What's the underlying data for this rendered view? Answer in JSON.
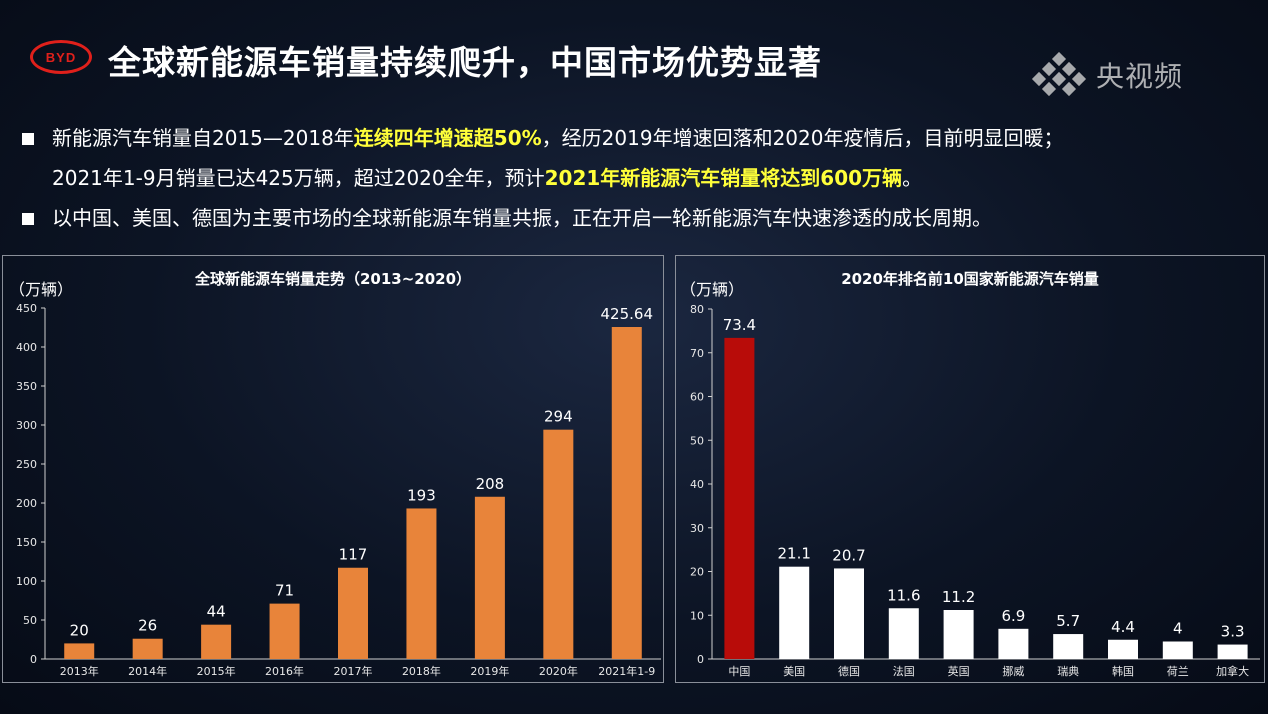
{
  "header": {
    "logo_text": "BYD",
    "title": "全球新能源车销量持续爬升，中国市场优势显著",
    "watermark": "央视频"
  },
  "bullets": [
    {
      "parts": [
        {
          "text": "新能源汽车销量自2015—2018年",
          "hl": false
        },
        {
          "text": "连续四年增速超50%",
          "hl": true
        },
        {
          "text": "，经历2019年增速回落和2020年疫情后，目前明显回暖；",
          "hl": false
        }
      ],
      "line2": [
        {
          "text": "2021年1-9月销量已达425万辆，超过2020全年，预计",
          "hl": false
        },
        {
          "text": "2021年新能源汽车销量将达到600万辆",
          "hl": true
        },
        {
          "text": "。",
          "hl": false
        }
      ]
    },
    {
      "parts": [
        {
          "text": "以中国、美国、德国为主要市场的全球新能源车销量共振，正在开启一轮新能源汽车快速渗透的成长周期。",
          "hl": false
        }
      ]
    }
  ],
  "colors": {
    "orange_bar": "#e8843a",
    "china_bar": "#b80c09",
    "white_bar": "#ffffff",
    "highlight": "#ffff3a",
    "brand_red": "#e0201b"
  },
  "chart_data": [
    {
      "type": "bar",
      "title": "全球新能源车销量走势（2013~2020）",
      "unit_label": "（万辆）",
      "categories": [
        "2013年",
        "2014年",
        "2015年",
        "2016年",
        "2017年",
        "2018年",
        "2019年",
        "2020年",
        "2021年1-9"
      ],
      "values": [
        20,
        26,
        44,
        71,
        117,
        193,
        208,
        294,
        425.64
      ],
      "value_labels": [
        "20",
        "26",
        "44",
        "71",
        "117",
        "193",
        "208",
        "294",
        "425.64"
      ],
      "ylim": [
        0,
        450
      ],
      "yticks": [
        0,
        50,
        100,
        150,
        200,
        250,
        300,
        350,
        400,
        450
      ],
      "grid": false
    },
    {
      "type": "bar",
      "title": "2020年排名前10国家新能源汽车销量",
      "unit_label": "（万辆）",
      "categories": [
        "中国",
        "美国",
        "德国",
        "法国",
        "英国",
        "挪威",
        "瑞典",
        "韩国",
        "荷兰",
        "加拿大"
      ],
      "values": [
        73.4,
        21.1,
        20.7,
        11.6,
        11.2,
        6.9,
        5.7,
        4.4,
        4,
        3.3
      ],
      "value_labels": [
        "73.4",
        "21.1",
        "20.7",
        "11.6",
        "11.2",
        "6.9",
        "5.7",
        "4.4",
        "4",
        "3.3"
      ],
      "ylim": [
        0,
        80
      ],
      "yticks": [
        0,
        10,
        20,
        30,
        40,
        50,
        60,
        70,
        80
      ],
      "grid": false
    }
  ]
}
